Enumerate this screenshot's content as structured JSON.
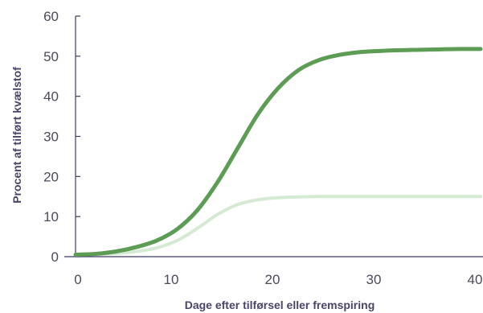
{
  "chart_data": {
    "type": "line",
    "title": "",
    "xlabel": "Dage efter tilførsel eller fremspiring",
    "ylabel": "Procent af tilført kvælstof",
    "xlim": [
      0,
      40
    ],
    "ylim": [
      0,
      60
    ],
    "x_ticks": [
      "0",
      "10",
      "20",
      "30",
      "40"
    ],
    "y_ticks": [
      "0",
      "10",
      "20",
      "30",
      "40",
      "50",
      "60"
    ],
    "grid": false,
    "legend": "none",
    "series": [
      {
        "color": "#5c9c54",
        "x": [
          0,
          2,
          4,
          6,
          8,
          10,
          12,
          14,
          16,
          18,
          20,
          22,
          24,
          26,
          28,
          30,
          32,
          34,
          36,
          38,
          40
        ],
        "y": [
          0.5,
          0.7,
          1.3,
          2.4,
          4.0,
          6.8,
          11.5,
          18.5,
          27.0,
          35.5,
          42.0,
          46.5,
          49.0,
          50.3,
          51.0,
          51.3,
          51.5,
          51.6,
          51.7,
          51.8,
          51.8
        ]
      },
      {
        "color": "#d5ead2",
        "x": [
          0,
          2,
          4,
          6,
          8,
          10,
          12,
          14,
          16,
          18,
          20,
          22,
          24,
          26,
          28,
          30,
          32,
          34,
          36,
          38,
          40
        ],
        "y": [
          0.5,
          0.6,
          0.8,
          1.3,
          2.2,
          4.0,
          7.0,
          10.5,
          13.0,
          14.2,
          14.7,
          14.9,
          15.0,
          15.0,
          15.0,
          15.0,
          15.0,
          15.0,
          15.0,
          15.0,
          15.0
        ]
      }
    ],
    "axis_color": "#3c3a5e"
  }
}
